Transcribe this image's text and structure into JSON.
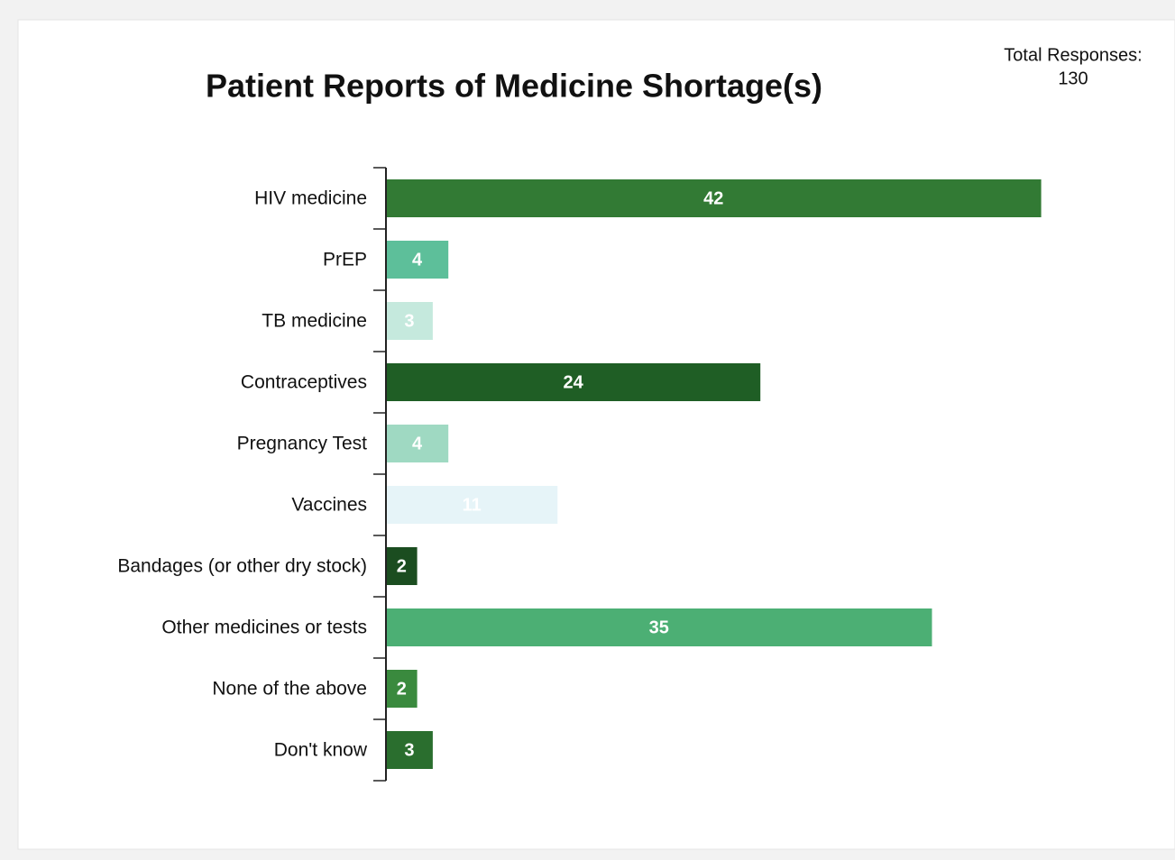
{
  "chart_data": {
    "type": "bar",
    "orientation": "horizontal",
    "title": "Patient Reports of Medicine Shortage(s)",
    "total_label": "Total Responses:",
    "total": 130,
    "categories": [
      "HIV medicine",
      "PrEP",
      "TB medicine",
      "Contraceptives",
      "Pregnancy Test",
      "Vaccines",
      "Bandages (or other dry stock)",
      "Other medicines or tests",
      "None of the above",
      "Don't know"
    ],
    "values": [
      42,
      4,
      3,
      24,
      4,
      11,
      2,
      35,
      2,
      3
    ],
    "colors": [
      "#327a34",
      "#5dbf9a",
      "#c5e9dd",
      "#1f5e25",
      "#9fd9c2",
      "#e6f4f8",
      "#1b4d20",
      "#4caf74",
      "#3a8a3e",
      "#2a6e2e"
    ],
    "xlim": [
      0,
      50
    ]
  }
}
